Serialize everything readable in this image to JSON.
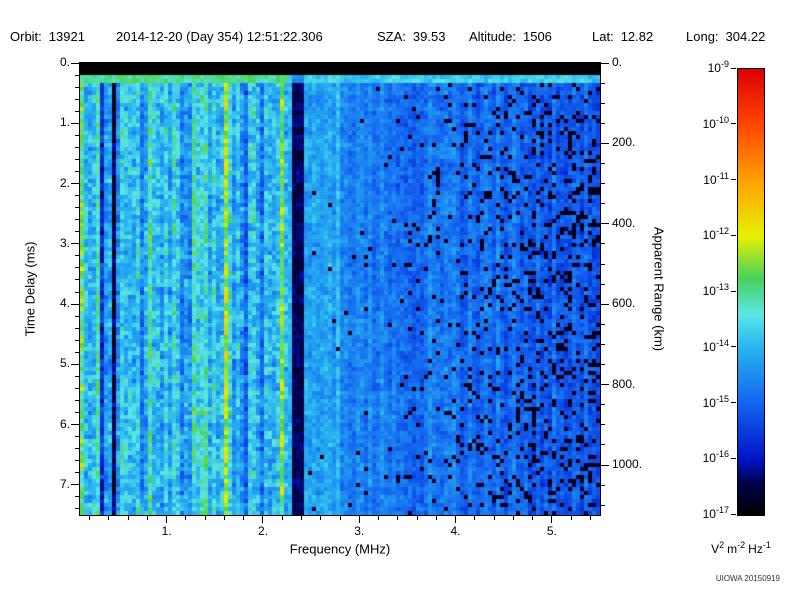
{
  "header": {
    "fields": [
      {
        "label": "Orbit:",
        "value": "13921"
      },
      {
        "label": "",
        "value": "2014-12-20 (Day 354) 12:51:22.306"
      },
      {
        "label": "SZA:",
        "value": "39.53"
      },
      {
        "label": "Altitude:",
        "value": "1506"
      },
      {
        "label": "Lat:",
        "value": "12.82"
      },
      {
        "label": "Long:",
        "value": "304.22"
      }
    ]
  },
  "footer": {
    "watermark": "UIOWA 20150919"
  },
  "chart_data": {
    "type": "heatmap",
    "title": "",
    "xlabel": "Frequency (MHz)",
    "ylabel": "Time Delay (ms)",
    "y2label": "Apparent Range (km)",
    "x_range": [
      0.1,
      5.5
    ],
    "x_major_ticks": [
      1,
      2,
      3,
      4,
      5
    ],
    "x_major_tick_labels": [
      "1.",
      "2.",
      "3.",
      "4.",
      "5."
    ],
    "x_minor_step": 0.2,
    "y_range": [
      0,
      7.5
    ],
    "y_major_ticks": [
      0,
      1,
      2,
      3,
      4,
      5,
      6,
      7
    ],
    "y_major_tick_labels": [
      "0.",
      "1.",
      "2.",
      "3.",
      "4.",
      "5.",
      "6.",
      "7."
    ],
    "y_minor_step": 0.2,
    "y2_major_ticks_km": [
      0,
      200,
      400,
      600,
      800,
      1000
    ],
    "y2_major_tick_labels": [
      "0.",
      "200.",
      "400.",
      "600.",
      "800.",
      "1000."
    ],
    "y2_minor_step_km": 50,
    "y2_km_per_ms": 149.9,
    "grid": false,
    "colorbar": {
      "scale": "log10",
      "tick_exponents": [
        -9,
        -10,
        -11,
        -12,
        -13,
        -14,
        -15,
        -16,
        -17
      ],
      "units_parts": [
        {
          "base": "V",
          "exp": "2"
        },
        {
          "base": "m",
          "exp": "-2"
        },
        {
          "base": "Hz",
          "exp": "-1"
        }
      ],
      "colormap_stops": [
        {
          "p": 0.0,
          "c": "#000000"
        },
        {
          "p": 0.07,
          "c": "#00004a"
        },
        {
          "p": 0.125,
          "c": "#0014c8"
        },
        {
          "p": 0.25,
          "c": "#1464f0"
        },
        {
          "p": 0.375,
          "c": "#28b4f0"
        },
        {
          "p": 0.45,
          "c": "#5ce6e6"
        },
        {
          "p": 0.53,
          "c": "#46d25a"
        },
        {
          "p": 0.625,
          "c": "#e6f000"
        },
        {
          "p": 0.75,
          "c": "#ffa000"
        },
        {
          "p": 0.875,
          "c": "#ff4600"
        },
        {
          "p": 1.0,
          "c": "#dc0000"
        }
      ]
    },
    "features": {
      "transmit_blackout_ms": [
        0,
        0.18
      ],
      "surface_return_line_ms": [
        0.18,
        0.34
      ],
      "ionospheric_noise_band_mhz": [
        0.1,
        2.28
      ],
      "absorption_stripe_mhz": [
        2.3,
        2.44
      ],
      "dark_vertical_lines_mhz": [
        0.32,
        0.46
      ],
      "bright_vertical_lines_mhz": [
        0.15,
        0.68,
        1.3,
        1.62,
        2.2
      ],
      "background_noise_exponent_range": [
        -17,
        -15.5
      ],
      "noise_band_exponent_range": [
        -16,
        -14
      ]
    }
  }
}
